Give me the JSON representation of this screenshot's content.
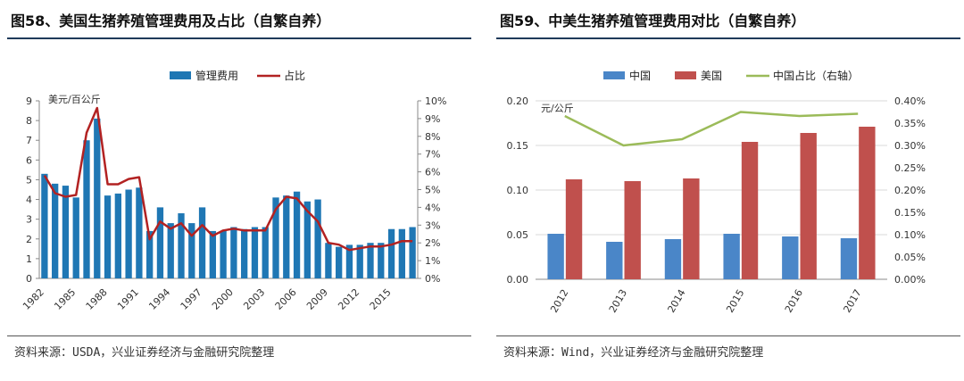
{
  "left": {
    "title": "图58、美国生猪养殖管理费用及占比（自繁自养）",
    "source": "资料来源：USDA，兴业证券经济与金融研究院整理",
    "legend": [
      "管理费用",
      "占比"
    ],
    "unit_label": "美元/百公斤"
  },
  "right": {
    "title": "图59、中美生猪养殖管理费用对比（自繁自养）",
    "source": "资料来源：Wind，兴业证券经济与金融研究院整理",
    "legend": [
      "中国",
      "美国",
      "中国占比（右轴）"
    ],
    "unit_label": "元/公斤"
  },
  "colors": {
    "bar_blue": "#1f77b4",
    "line_red": "#b22222",
    "china_blue": "#4a86c8",
    "usa_red": "#c0504d",
    "ratio_green": "#9bbb59"
  },
  "chart_data": [
    {
      "type": "bar",
      "combo": "bar+line",
      "x": [
        1982,
        1983,
        1984,
        1985,
        1986,
        1987,
        1988,
        1989,
        1990,
        1991,
        1992,
        1993,
        1994,
        1995,
        1996,
        1997,
        1998,
        1999,
        2000,
        2001,
        2002,
        2003,
        2004,
        2005,
        2006,
        2007,
        2008,
        2009,
        2010,
        2011,
        2012,
        2013,
        2014,
        2015,
        2016,
        2017
      ],
      "xticks": [
        "1982",
        "1985",
        "1988",
        "1991",
        "1994",
        "1997",
        "2000",
        "2003",
        "2006",
        "2009",
        "2012",
        "2015"
      ],
      "yticks_left": [
        "0",
        "1",
        "2",
        "3",
        "4",
        "5",
        "6",
        "7",
        "8",
        "9"
      ],
      "yticks_right": [
        "0%",
        "1%",
        "2%",
        "3%",
        "4%",
        "5%",
        "6%",
        "7%",
        "8%",
        "9%",
        "10%"
      ],
      "ylim_left": [
        0,
        9
      ],
      "ylim_right": [
        0,
        10
      ],
      "series": [
        {
          "name": "管理费用",
          "type": "bar",
          "axis": "left",
          "values": [
            5.3,
            4.8,
            4.7,
            4.1,
            7.0,
            8.1,
            4.2,
            4.3,
            4.5,
            4.6,
            2.4,
            3.6,
            2.8,
            3.3,
            2.8,
            3.6,
            2.4,
            2.4,
            2.6,
            2.5,
            2.6,
            2.6,
            4.1,
            4.2,
            4.4,
            3.9,
            4.0,
            1.8,
            1.6,
            1.7,
            1.7,
            1.8,
            1.8,
            2.5,
            2.5,
            2.6
          ]
        },
        {
          "name": "占比",
          "type": "line",
          "axis": "right",
          "values": [
            5.8,
            4.8,
            4.6,
            4.7,
            8.2,
            9.6,
            5.3,
            5.3,
            5.6,
            5.7,
            2.2,
            3.2,
            2.8,
            3.1,
            2.4,
            3.0,
            2.4,
            2.7,
            2.8,
            2.7,
            2.7,
            2.7,
            3.9,
            4.6,
            4.5,
            3.8,
            3.2,
            2.0,
            1.9,
            1.6,
            1.7,
            1.8,
            1.8,
            1.9,
            2.1,
            2.1
          ]
        }
      ],
      "grid": false,
      "legend_position": "top"
    },
    {
      "type": "bar",
      "combo": "bar+line",
      "categories": [
        "2012",
        "2013",
        "2014",
        "2015",
        "2016",
        "2017"
      ],
      "yticks_left": [
        "0.00",
        "0.05",
        "0.10",
        "0.15",
        "0.20"
      ],
      "yticks_right": [
        "0.00%",
        "0.05%",
        "0.10%",
        "0.15%",
        "0.20%",
        "0.25%",
        "0.30%",
        "0.35%",
        "0.40%"
      ],
      "ylim_left": [
        0,
        0.2
      ],
      "ylim_right": [
        0,
        0.4
      ],
      "series": [
        {
          "name": "中国",
          "type": "bar",
          "axis": "left",
          "values": [
            0.051,
            0.042,
            0.045,
            0.051,
            0.048,
            0.046
          ]
        },
        {
          "name": "美国",
          "type": "bar",
          "axis": "left",
          "values": [
            0.112,
            0.11,
            0.113,
            0.154,
            0.164,
            0.171
          ]
        },
        {
          "name": "中国占比（右轴）",
          "type": "line",
          "axis": "right",
          "values": [
            0.366,
            0.3,
            0.314,
            0.375,
            0.366,
            0.371
          ]
        }
      ],
      "grid": true,
      "legend_position": "top"
    }
  ]
}
